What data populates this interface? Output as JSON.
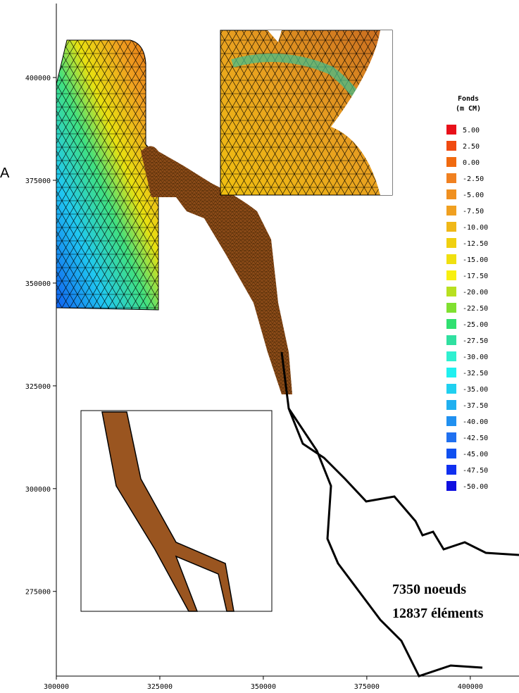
{
  "chart_data": {
    "type": "map",
    "side_label": "A",
    "xlim": [
      300000,
      411700
    ],
    "ylim": [
      254400,
      418000
    ],
    "xticks": [
      300000,
      325000,
      350000,
      375000,
      400000
    ],
    "yticks": [
      275000,
      300000,
      325000,
      350000,
      375000,
      400000
    ],
    "legend": {
      "title": "Fonds",
      "subtitle": "(m CM)",
      "labels": [
        "5.00",
        "2.50",
        "0.00",
        "-2.50",
        "-5.00",
        "-7.50",
        "-10.00",
        "-12.50",
        "-15.00",
        "-17.50",
        "-20.00",
        "-22.50",
        "-25.00",
        "-27.50",
        "-30.00",
        "-32.50",
        "-35.00",
        "-37.50",
        "-40.00",
        "-42.50",
        "-45.00",
        "-47.50",
        "-50.00"
      ],
      "colors": [
        "#e8101a",
        "#f04a10",
        "#f06a10",
        "#f08020",
        "#f09020",
        "#f0a020",
        "#f0b818",
        "#f0d010",
        "#f0e010",
        "#f8f010",
        "#b8e020",
        "#80e030",
        "#30e070",
        "#30e0a0",
        "#30f0d0",
        "#20f0f0",
        "#20d0f0",
        "#20b0f0",
        "#2090f0",
        "#2070f0",
        "#1050f0",
        "#1030f0",
        "#1010e0"
      ]
    },
    "annotations": [
      "7350 noeuds",
      "12837 éléments"
    ]
  }
}
